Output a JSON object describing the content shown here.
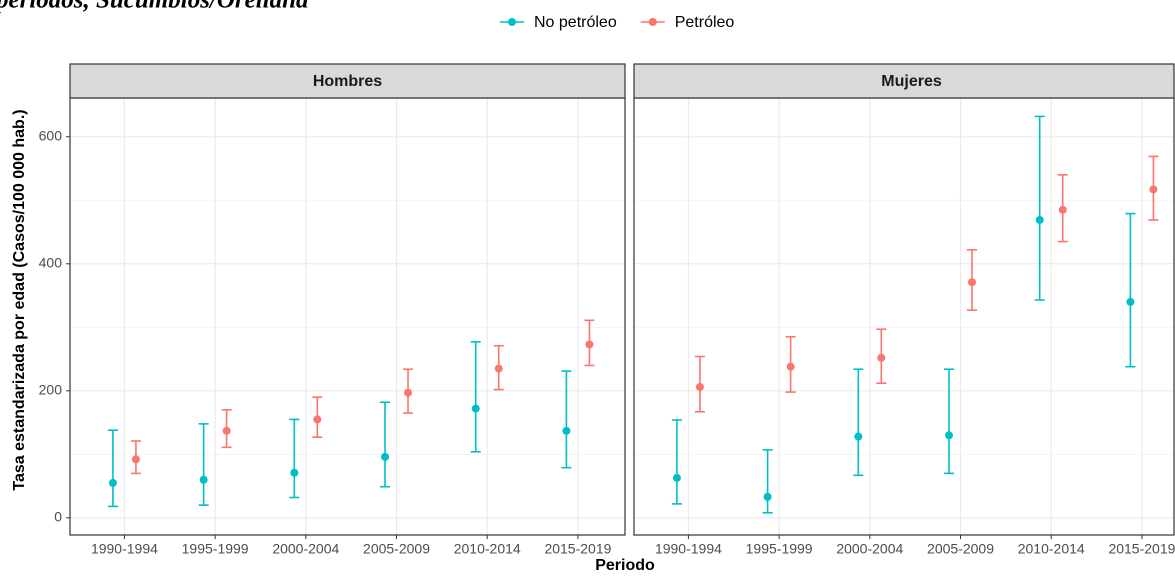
{
  "chart_data": [
    {
      "type": "errorbar",
      "title": "periodos, Sucumbíos/Orellana",
      "facet": "Hombres",
      "x_label": "Periodo",
      "y_label": "Tasa estandarizada por edad (Casos/100 000 hab.)",
      "categories": [
        "1990-1994",
        "1995-1999",
        "2000-2004",
        "2005-2009",
        "2010-2014",
        "2015-2019"
      ],
      "ylim": [
        -27,
        661
      ],
      "yticks": [
        0,
        200,
        400,
        600
      ],
      "grid": true,
      "legend": "top",
      "series": [
        {
          "name": "No petróleo",
          "color": "#00BFC4",
          "values": [
            55,
            60,
            71,
            96,
            172,
            137
          ],
          "lower": [
            18,
            20,
            32,
            49,
            104,
            79
          ],
          "upper": [
            138,
            148,
            155,
            182,
            277,
            231
          ]
        },
        {
          "name": "Petróleo",
          "color": "#F8766D",
          "values": [
            92,
            137,
            155,
            197,
            235,
            273
          ],
          "lower": [
            70,
            111,
            127,
            165,
            202,
            240
          ],
          "upper": [
            121,
            170,
            190,
            234,
            271,
            311
          ]
        }
      ]
    },
    {
      "type": "errorbar",
      "facet": "Mujeres",
      "categories": [
        "1990-1994",
        "1995-1999",
        "2000-2004",
        "2005-2009",
        "2010-2014",
        "2015-2019"
      ],
      "ylim": [
        -27,
        661
      ],
      "yticks": [
        0,
        200,
        400,
        600
      ],
      "grid": true,
      "series": [
        {
          "name": "No petróleo",
          "color": "#00BFC4",
          "values": [
            63,
            33,
            128,
            130,
            469,
            340
          ],
          "lower": [
            22,
            8,
            67,
            70,
            343,
            238
          ],
          "upper": [
            154,
            107,
            234,
            234,
            632,
            479
          ]
        },
        {
          "name": "Petróleo",
          "color": "#F8766D",
          "values": [
            206,
            238,
            252,
            371,
            485,
            517
          ],
          "lower": [
            167,
            198,
            212,
            327,
            435,
            469
          ],
          "upper": [
            254,
            285,
            297,
            422,
            540,
            569
          ]
        }
      ]
    }
  ]
}
